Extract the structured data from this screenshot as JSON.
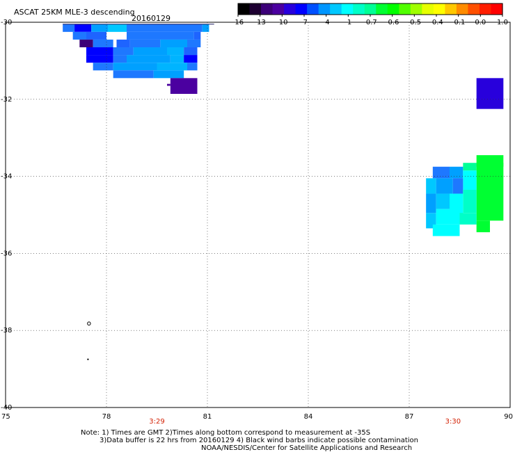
{
  "chart_data": {
    "type": "heatmap",
    "title": "ASCAT 25KM MLE-3 descending",
    "date": "20160129",
    "xlim": [
      75,
      90
    ],
    "ylim": [
      -40,
      -30
    ],
    "x_ticks": [
      75,
      78,
      81,
      84,
      87,
      90
    ],
    "y_ticks": [
      -30,
      -32,
      -34,
      -36,
      -38,
      -40
    ],
    "grid": true,
    "time_labels": [
      {
        "lon": 79.5,
        "text": "3:29"
      },
      {
        "lon": 88.3,
        "text": "3:30"
      }
    ],
    "colorbar": {
      "labels": [
        "-16",
        "-13",
        "-10",
        "-7",
        "-4",
        "-1",
        "-0.7",
        "-0.6",
        "-0.5",
        "-0.4",
        "-0.1",
        "0.0",
        "1.0"
      ],
      "colors": [
        "#000000",
        "#1e0032",
        "#3c0078",
        "#4b00a0",
        "#2800dc",
        "#0000ff",
        "#0050ff",
        "#0096ff",
        "#00c8ff",
        "#00ffff",
        "#00ffc8",
        "#00ff96",
        "#00ff32",
        "#00ff00",
        "#50ff00",
        "#a0ff00",
        "#e6ff00",
        "#ffff00",
        "#ffc800",
        "#ff8c00",
        "#ff5000",
        "#ff1e00",
        "#ff0000"
      ]
    },
    "cells": [
      {
        "lon": 76.7,
        "lat": -30.05,
        "w": 0.35,
        "h": 0.2,
        "color": "#1e78ff"
      },
      {
        "lon": 77.05,
        "lat": -30.05,
        "w": 0.5,
        "h": 0.2,
        "color": "#0000ff"
      },
      {
        "lon": 77.55,
        "lat": -30.05,
        "w": 0.5,
        "h": 0.2,
        "color": "#00a0ff"
      },
      {
        "lon": 78.05,
        "lat": -30.05,
        "w": 0.55,
        "h": 0.2,
        "color": "#00c8ff"
      },
      {
        "lon": 78.6,
        "lat": -30.05,
        "w": 2.25,
        "h": 0.2,
        "color": "#1e78ff"
      },
      {
        "lon": 80.85,
        "lat": -30.05,
        "w": 0.2,
        "h": 0.2,
        "color": "#00a0ff"
      },
      {
        "lon": 77.0,
        "lat": -30.25,
        "w": 0.4,
        "h": 0.2,
        "color": "#1e78ff"
      },
      {
        "lon": 77.4,
        "lat": -30.25,
        "w": 0.6,
        "h": 0.2,
        "color": "#1e64ff"
      },
      {
        "lon": 78.6,
        "lat": -30.25,
        "w": 2.0,
        "h": 0.2,
        "color": "#1e78ff"
      },
      {
        "lon": 80.6,
        "lat": -30.25,
        "w": 0.2,
        "h": 0.2,
        "color": "#1e64ff"
      },
      {
        "lon": 77.2,
        "lat": -30.45,
        "w": 0.4,
        "h": 0.2,
        "color": "#3c0078"
      },
      {
        "lon": 77.6,
        "lat": -30.45,
        "w": 0.6,
        "h": 0.2,
        "color": "#1e78ff"
      },
      {
        "lon": 78.3,
        "lat": -30.45,
        "w": 0.4,
        "h": 0.2,
        "color": "#1e64ff"
      },
      {
        "lon": 78.7,
        "lat": -30.45,
        "w": 0.9,
        "h": 0.2,
        "color": "#1e78ff"
      },
      {
        "lon": 79.6,
        "lat": -30.45,
        "w": 0.8,
        "h": 0.2,
        "color": "#00a0ff"
      },
      {
        "lon": 80.4,
        "lat": -30.45,
        "w": 0.4,
        "h": 0.2,
        "color": "#1e78ff"
      },
      {
        "lon": 77.4,
        "lat": -30.65,
        "w": 0.8,
        "h": 0.2,
        "color": "#0000ff"
      },
      {
        "lon": 78.2,
        "lat": -30.65,
        "w": 0.6,
        "h": 0.2,
        "color": "#1e78ff"
      },
      {
        "lon": 78.8,
        "lat": -30.65,
        "w": 1.0,
        "h": 0.2,
        "color": "#00a0ff"
      },
      {
        "lon": 79.8,
        "lat": -30.65,
        "w": 0.5,
        "h": 0.2,
        "color": "#00b4ff"
      },
      {
        "lon": 80.3,
        "lat": -30.65,
        "w": 0.4,
        "h": 0.2,
        "color": "#1e64ff"
      },
      {
        "lon": 77.4,
        "lat": -30.85,
        "w": 0.8,
        "h": 0.2,
        "color": "#0000ff"
      },
      {
        "lon": 78.2,
        "lat": -30.85,
        "w": 0.4,
        "h": 0.2,
        "color": "#1e78ff"
      },
      {
        "lon": 78.6,
        "lat": -30.85,
        "w": 1.3,
        "h": 0.2,
        "color": "#00a0ff"
      },
      {
        "lon": 79.9,
        "lat": -30.85,
        "w": 0.4,
        "h": 0.2,
        "color": "#00b4ff"
      },
      {
        "lon": 80.3,
        "lat": -30.85,
        "w": 0.4,
        "h": 0.2,
        "color": "#0000ff"
      },
      {
        "lon": 77.6,
        "lat": -31.05,
        "w": 0.6,
        "h": 0.2,
        "color": "#1e78ff"
      },
      {
        "lon": 78.2,
        "lat": -31.05,
        "w": 1.3,
        "h": 0.2,
        "color": "#00a0ff"
      },
      {
        "lon": 79.5,
        "lat": -31.05,
        "w": 0.9,
        "h": 0.2,
        "color": "#00b4ff"
      },
      {
        "lon": 80.4,
        "lat": -31.05,
        "w": 0.3,
        "h": 0.2,
        "color": "#1e78ff"
      },
      {
        "lon": 78.2,
        "lat": -31.25,
        "w": 1.2,
        "h": 0.2,
        "color": "#1e78ff"
      },
      {
        "lon": 79.4,
        "lat": -31.25,
        "w": 0.9,
        "h": 0.2,
        "color": "#00a0ff"
      },
      {
        "lon": 79.9,
        "lat": -31.45,
        "w": 0.8,
        "h": 0.4,
        "color": "#4b00a0"
      },
      {
        "lon": 79.8,
        "lat": -31.6,
        "w": 0.1,
        "h": 0.05,
        "color": "#4b00a0"
      },
      {
        "lon": 80.3,
        "lat": -31.85,
        "w": 0.4,
        "h": 0.0,
        "color": "#4b00a0"
      },
      {
        "lon": 79.9,
        "lat": -31.85,
        "w": 0.8,
        "h": 0.0,
        "color": "#4b00a0"
      },
      {
        "lon": 89.0,
        "lat": -31.45,
        "w": 0.8,
        "h": 0.8,
        "color": "#2800dc"
      },
      {
        "lon": 89.0,
        "lat": -33.45,
        "w": 0.8,
        "h": 0.3,
        "color": "#00ff32"
      },
      {
        "lon": 88.6,
        "lat": -33.65,
        "w": 0.4,
        "h": 0.2,
        "color": "#00ff96"
      },
      {
        "lon": 89.0,
        "lat": -33.65,
        "w": 0.8,
        "h": 1.5,
        "color": "#00ff32"
      },
      {
        "lon": 87.7,
        "lat": -33.75,
        "w": 0.5,
        "h": 0.3,
        "color": "#1e78ff"
      },
      {
        "lon": 88.2,
        "lat": -33.75,
        "w": 0.4,
        "h": 0.3,
        "color": "#00a0ff"
      },
      {
        "lon": 88.6,
        "lat": -33.85,
        "w": 0.4,
        "h": 0.5,
        "color": "#00ffff"
      },
      {
        "lon": 87.5,
        "lat": -34.05,
        "w": 0.3,
        "h": 0.4,
        "color": "#00c8ff"
      },
      {
        "lon": 87.8,
        "lat": -34.05,
        "w": 0.5,
        "h": 0.4,
        "color": "#00a0ff"
      },
      {
        "lon": 88.3,
        "lat": -34.05,
        "w": 0.3,
        "h": 0.4,
        "color": "#1e78ff"
      },
      {
        "lon": 88.6,
        "lat": -34.35,
        "w": 0.4,
        "h": 0.6,
        "color": "#00ffc8"
      },
      {
        "lon": 87.5,
        "lat": -34.45,
        "w": 0.3,
        "h": 0.5,
        "color": "#00a0ff"
      },
      {
        "lon": 87.8,
        "lat": -34.45,
        "w": 0.4,
        "h": 0.4,
        "color": "#00c8ff"
      },
      {
        "lon": 88.2,
        "lat": -34.45,
        "w": 0.4,
        "h": 0.6,
        "color": "#00ffff"
      },
      {
        "lon": 89.0,
        "lat": -35.15,
        "w": 0.4,
        "h": 0.3,
        "color": "#00ff32"
      },
      {
        "lon": 87.5,
        "lat": -34.95,
        "w": 0.3,
        "h": 0.4,
        "color": "#00c8ff"
      },
      {
        "lon": 87.8,
        "lat": -34.85,
        "w": 0.7,
        "h": 0.4,
        "color": "#00ffff"
      },
      {
        "lon": 88.5,
        "lat": -34.95,
        "w": 0.5,
        "h": 0.3,
        "color": "#00ffc8"
      },
      {
        "lon": 87.7,
        "lat": -35.25,
        "w": 0.8,
        "h": 0.3,
        "color": "#00ffff"
      }
    ],
    "contours": [
      {
        "lon": 77.48,
        "lat": -37.82,
        "shape": "ring"
      },
      {
        "lon": 77.45,
        "lat": -38.75,
        "shape": "dot"
      }
    ]
  },
  "notes": [
    "Note: 1) Times are GMT 2)Times along bottom correspond to measurement at -35S",
    "3)Data buffer is 22 hrs from 20160129 4) Black wind barbs indicate possible contamination",
    "NOAA/NESDIS/Center for Satellite Applications and Research"
  ]
}
